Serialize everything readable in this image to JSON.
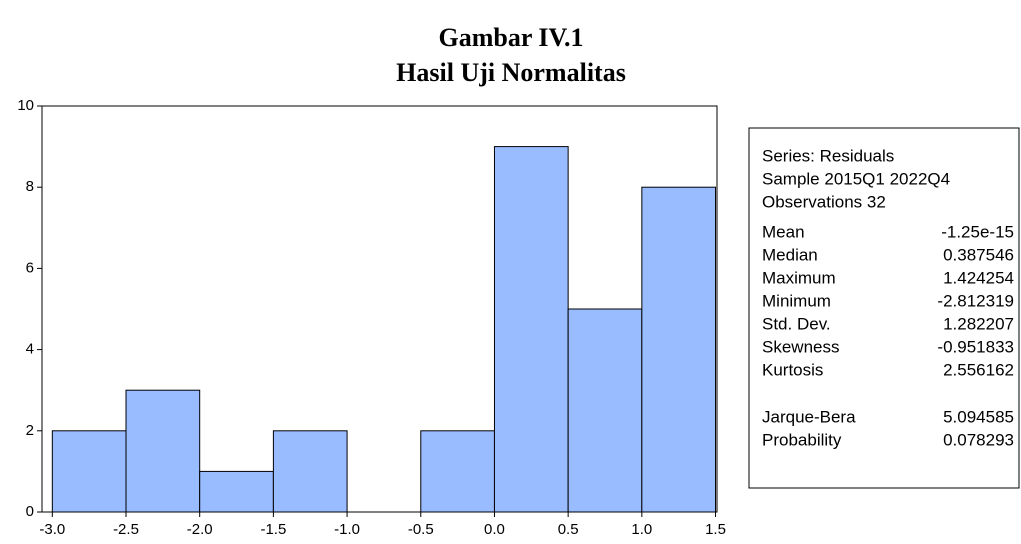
{
  "chart_data": {
    "type": "histogram",
    "title": "Gambar IV.1",
    "subtitle": "Hasil Uji Normalitas",
    "bins": [
      -3.0,
      -2.5,
      -2.0,
      -1.5,
      -1.0,
      -0.5,
      0.0,
      0.5,
      1.0,
      1.5
    ],
    "counts": [
      2,
      3,
      1,
      2,
      0,
      2,
      9,
      5,
      8
    ],
    "color": "#99bbff",
    "xlim": [
      -3.07,
      1.51
    ],
    "xticks": [
      {
        "value": -3.0,
        "label": "-3.0"
      },
      {
        "value": -2.5,
        "label": "-2.5"
      },
      {
        "value": -2.0,
        "label": "-2.0"
      },
      {
        "value": -1.5,
        "label": "-1.5"
      },
      {
        "value": -1.0,
        "label": "-1.0"
      },
      {
        "value": -0.5,
        "label": "-0.5"
      },
      {
        "value": 0.0,
        "label": "0.0"
      },
      {
        "value": 0.5,
        "label": "0.5"
      },
      {
        "value": 1.0,
        "label": "1.0"
      },
      {
        "value": 1.5,
        "label": "1.5"
      }
    ],
    "ylim": [
      0,
      10
    ],
    "yticks": [
      0,
      2,
      4,
      6,
      8,
      10
    ],
    "stats": {
      "lines": [
        "Series: Residuals",
        "Sample 2015Q1 2022Q4",
        "Observations 32"
      ],
      "groups": [
        [
          [
            "Mean",
            "-1.25e-15"
          ],
          [
            "Median",
            "0.387546"
          ],
          [
            "Maximum",
            "1.424254"
          ],
          [
            "Minimum",
            "-2.812319"
          ],
          [
            "Std. Dev.",
            "1.282207"
          ],
          [
            "Skewness",
            "-0.951833"
          ],
          [
            "Kurtosis",
            "2.556162"
          ]
        ],
        [
          [
            "Jarque-Bera",
            "5.094585"
          ],
          [
            "Probability",
            "0.078293"
          ]
        ]
      ]
    }
  }
}
